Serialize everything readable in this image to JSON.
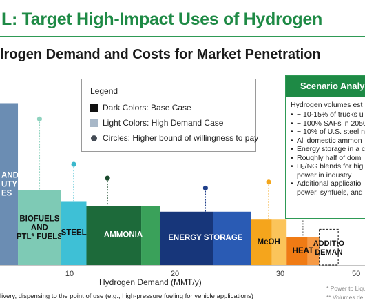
{
  "header": {
    "title": "L: Target High-Impact Uses of Hydrogen",
    "subtitle": "lrogen Demand and Costs for Market Penetration"
  },
  "legend": {
    "title": "Legend",
    "items": [
      {
        "label": "Dark Colors: Base Case",
        "color": "#111111",
        "shape": "square"
      },
      {
        "label": "Light Colors: High Demand Case",
        "color": "#a8b8c8",
        "shape": "square"
      },
      {
        "label": "Circles: Higher bound of willingness to pay",
        "color": "#444b55",
        "shape": "circle"
      }
    ]
  },
  "scenario": {
    "title": "Scenario Analyse",
    "intro": "Hydrogen volumes est",
    "items": [
      "~ 10-15% of trucks u",
      "~ 100% SAFs in 2050",
      "~ 10% of U.S. steel n",
      "All domestic ammon",
      "Energy storage in a c",
      "Roughly half of dom",
      "H₂/NG blends for hig",
      "power in industry",
      "Additional applicatio",
      "power, synfuels, and"
    ]
  },
  "chart_data": {
    "type": "bar",
    "xlabel": "Hydrogen Demand (MMT/y)",
    "x_ticks": [
      "10",
      "20",
      "30",
      "50"
    ],
    "segments": [
      {
        "label_lines": [
          "AND",
          "UTY",
          "ES"
        ],
        "start": 2.2,
        "base_end": 2.2,
        "high_end": 5.1,
        "height": 0.82,
        "dark": "#4a6e96",
        "light": "#6b8db3",
        "label_color": "#ffffff",
        "circle": null,
        "circle_color": null
      },
      {
        "label_lines": [
          "BIOFUELS",
          "AND",
          "PTL* FUELS"
        ],
        "start": 5.1,
        "base_end": 9.2,
        "high_end": 9.2,
        "height": 0.38,
        "dark": "#7ecab5",
        "light": "#7ecab5",
        "label_color": "#111111",
        "circle": 0.74,
        "circle_color": "#8fd3bf"
      },
      {
        "label_lines": [
          "STEEL"
        ],
        "start": 9.2,
        "base_end": 11.6,
        "high_end": 11.6,
        "height": 0.32,
        "dark": "#3ec0d6",
        "light": "#8edbe8",
        "label_color": "#111111",
        "circle": 0.51,
        "circle_color": "#3ab8cc"
      },
      {
        "label_lines": [
          "AMMONIA"
        ],
        "start": 11.6,
        "base_end": 16.8,
        "high_end": 18.6,
        "height": 0.3,
        "dark": "#1d6a3a",
        "light": "#3aa15a",
        "label_color": "#ffffff",
        "circle": 0.44,
        "circle_color": "#1a4a2c"
      },
      {
        "label_lines": [
          "ENERGY STORAGE"
        ],
        "start": 18.6,
        "base_end": 23.6,
        "high_end": 27.2,
        "height": 0.27,
        "dark": "#17367a",
        "light": "#2a5bb4",
        "label_color": "#ffffff",
        "circle": 0.39,
        "circle_color": "#1f3f8a"
      },
      {
        "label_lines": [
          "MeOH"
        ],
        "start": 27.2,
        "base_end": 29.2,
        "high_end": 30.6,
        "height": 0.23,
        "dark": "#f5a51c",
        "light": "#fbc45a",
        "label_color": "#111111",
        "circle": 0.42,
        "circle_color": "#f3a61c"
      },
      {
        "label_lines": [
          "HEAT"
        ],
        "start": 30.6,
        "base_end": 32.6,
        "high_end": 33.7,
        "height": 0.14,
        "dark": "#f07b14",
        "light": "#f69a45",
        "label_color": "#111111",
        "circle": 0.31,
        "circle_color": "#777777"
      },
      {
        "label_lines": [
          "ADDITIO",
          "DEMAN"
        ],
        "start": 33.7,
        "base_end": 35.5,
        "high_end": 35.5,
        "height": 0.18,
        "dark": "#ffffff",
        "light": "#ffffff",
        "label_color": "#111111",
        "circle": null,
        "circle_color": null
      }
    ]
  },
  "footnotes": {
    "left": "livery, dispensing to the point of use (e.g., high-pressure fueling for vehicle applications)",
    "right1": "* Power to Liqu",
    "right2": "** Volumes de"
  }
}
